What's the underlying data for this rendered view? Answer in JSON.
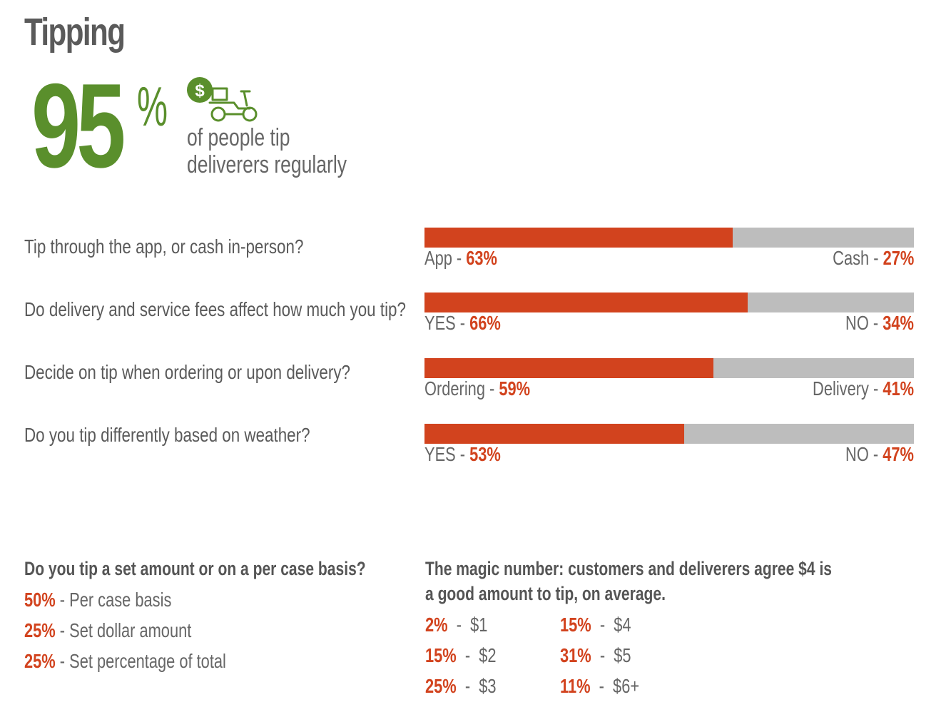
{
  "title": "Tipping",
  "hero": {
    "number": "95",
    "symbol": "%",
    "line1": "of people tip",
    "line2": "deliverers regularly",
    "icon": "scooter-dollar-icon"
  },
  "colors": {
    "accent": "#d2431e",
    "remainder": "#bdbdbd",
    "hero": "#5a8f2c",
    "text": "#555555"
  },
  "chart_data": {
    "type": "bar",
    "orientation": "horizontal-stacked",
    "questions": [
      {
        "question": "Tip through the app, or cash in-person?",
        "left_label": "App - ",
        "left_value": "63%",
        "left": 63,
        "right_label": "Cash - ",
        "right_value": "27%",
        "right": 27
      },
      {
        "question": "Do delivery and service fees affect how much you tip?",
        "left_label": "YES - ",
        "left_value": "66%",
        "left": 66,
        "right_label": "NO - ",
        "right_value": "34%",
        "right": 34
      },
      {
        "question": "Decide on tip when ordering or upon delivery?",
        "left_label": "Ordering - ",
        "left_value": "59%",
        "left": 59,
        "right_label": "Delivery - ",
        "right_value": "41%",
        "right": 41
      },
      {
        "question": "Do you tip differently based on weather?",
        "left_label": "YES - ",
        "left_value": "53%",
        "left": 53,
        "right_label": "NO - ",
        "right_value": "47%",
        "right": 47
      }
    ]
  },
  "set_amount": {
    "heading": "Do you tip a set amount or on a per case basis?",
    "rows": [
      {
        "pct": "50%",
        "label": " - Per case basis"
      },
      {
        "pct": "25%",
        "label": " - Set dollar amount"
      },
      {
        "pct": "25%",
        "label": " - Set percentage of total"
      }
    ]
  },
  "magic": {
    "heading_line1": "The magic number: customers and deliverers agree $4 is",
    "heading_line2": "a good amount to tip, on average.",
    "rows": [
      {
        "pct": "2%",
        "label": "  -  $1"
      },
      {
        "pct": "15%",
        "label": "  -  $2"
      },
      {
        "pct": "25%",
        "label": "  -  $3"
      },
      {
        "pct": "15%",
        "label": "  -  $4"
      },
      {
        "pct": "31%",
        "label": "  -  $5"
      },
      {
        "pct": "11%",
        "label": "  -  $6+"
      }
    ]
  }
}
